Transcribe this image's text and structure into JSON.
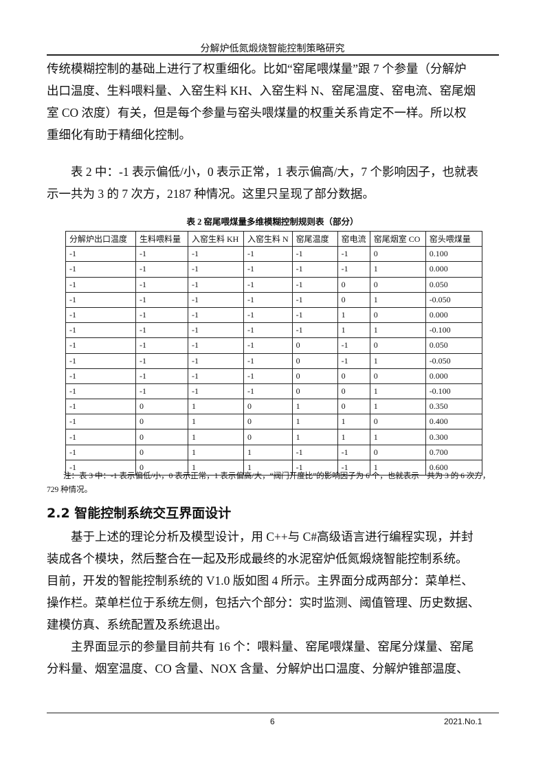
{
  "header": {
    "title": "分解炉低氮煅烧智能控制策略研究"
  },
  "para1": [
    "传统模糊控制的基础上进行了权重细化。比如“窑尾喂煤量”跟 7 个参量（分解炉",
    "出口温度、生料喂料量、入窑生料 KH、入窑生料 N、窑尾温度、窑电流、窑尾烟",
    "室 CO 浓度）有关，但是每个参量与窑头喂煤量的权重关系肯定不一样。所以权",
    "重细化有助于精细化控制。"
  ],
  "para2": [
    "表 2 中：-1 表示偏低/小，0 表示正常，1 表示偏高/大，7 个影响因子，也就表",
    "示一共为 3 的 7 次方，2187 种情况。这里只呈现了部分数据。"
  ],
  "table": {
    "caption": "表 2 窑尾喂煤量多维模糊控制规则表（部分）",
    "headers": [
      "分解炉出口温度",
      "生料喂料量",
      "入窑生料 KH",
      "入窑生料 N",
      "窑尾温度",
      "窑电流",
      "窑尾烟室 CO",
      "窑头喂煤量"
    ],
    "rows": [
      [
        "-1",
        "-1",
        "-1",
        "-1",
        "-1",
        "-1",
        "0",
        "0.100"
      ],
      [
        "-1",
        "-1",
        "-1",
        "-1",
        "-1",
        "-1",
        "1",
        "0.000"
      ],
      [
        "-1",
        "-1",
        "-1",
        "-1",
        "-1",
        "0",
        "0",
        "0.050"
      ],
      [
        "-1",
        "-1",
        "-1",
        "-1",
        "-1",
        "0",
        "1",
        "-0.050"
      ],
      [
        "-1",
        "-1",
        "-1",
        "-1",
        "-1",
        "1",
        "0",
        "0.000"
      ],
      [
        "-1",
        "-1",
        "-1",
        "-1",
        "-1",
        "1",
        "1",
        "-0.100"
      ],
      [
        "-1",
        "-1",
        "-1",
        "-1",
        "0",
        "-1",
        "0",
        "0.050"
      ],
      [
        "-1",
        "-1",
        "-1",
        "-1",
        "0",
        "-1",
        "1",
        "-0.050"
      ],
      [
        "-1",
        "-1",
        "-1",
        "-1",
        "0",
        "0",
        "0",
        "0.000"
      ],
      [
        "-1",
        "-1",
        "-1",
        "-1",
        "0",
        "0",
        "1",
        "-0.100"
      ],
      [
        "-1",
        "0",
        "1",
        "0",
        "1",
        "0",
        "1",
        "0.350"
      ],
      [
        "-1",
        "0",
        "1",
        "0",
        "1",
        "1",
        "0",
        "0.400"
      ],
      [
        "-1",
        "0",
        "1",
        "0",
        "1",
        "1",
        "1",
        "0.300"
      ],
      [
        "-1",
        "0",
        "1",
        "1",
        "-1",
        "-1",
        "0",
        "0.700"
      ],
      [
        "-1",
        "0",
        "1",
        "1",
        "-1",
        "-1",
        "1",
        "0.600"
      ]
    ],
    "note": [
      "注：表 3 中：-1 表示偏低/小，0 表示正常，1 表示偏高/大，“阀门开度比”的影响因子为 6 个，也就表示一共为 3 的 6 次方，",
      "729 种情况。"
    ]
  },
  "section": {
    "heading": "2.2 智能控制系统交互界面设计"
  },
  "para3": [
    "基于上述的理论分析及模型设计，用 C++与 C#高级语言进行编程实现，并封",
    "装成各个模块，然后整合在一起及形成最终的水泥窑炉低氮煅烧智能控制系统。",
    "目前，开发的智能控制系统的 V1.0 版如图 4 所示。主界面分成两部分：菜单栏、",
    "操作栏。菜单栏位于系统左侧，包括六个部分：实时监测、阈值管理、历史数据、",
    "建模仿真、系统配置及系统退出。"
  ],
  "para4": [
    "主界面显示的参量目前共有 16 个：喂料量、窑尾喂煤量、窑尾分煤量、窑尾",
    "分料量、烟室温度、CO 含量、NOX 含量、分解炉出口温度、分解炉锥部温度、"
  ],
  "footer": {
    "page": "6",
    "issue": "2021.No.1"
  }
}
